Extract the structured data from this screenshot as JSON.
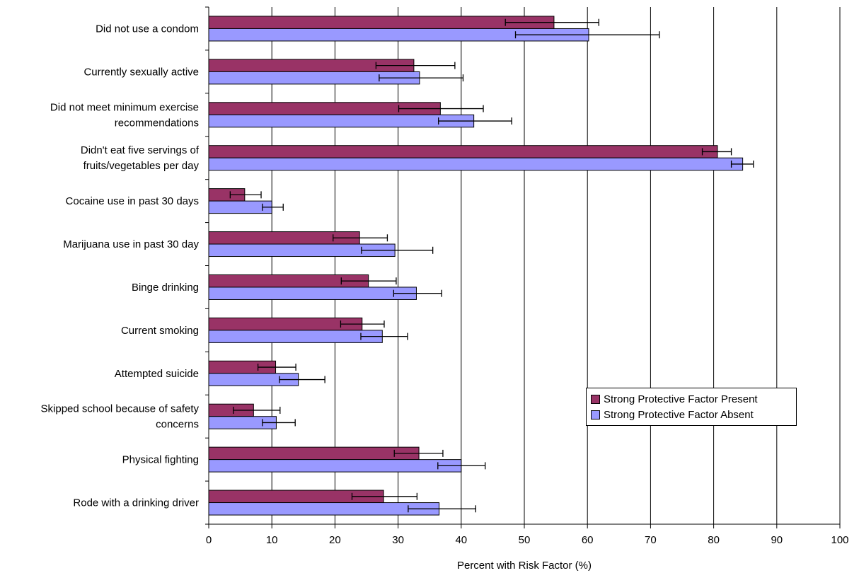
{
  "chart_data": {
    "type": "bar",
    "orientation": "horizontal",
    "title": "",
    "xlabel": "Percent with Risk Factor (%)",
    "ylabel": "",
    "xlim": [
      0,
      100
    ],
    "xticks": [
      0,
      10,
      20,
      30,
      40,
      50,
      60,
      70,
      80,
      90,
      100
    ],
    "grid": "vertical gridlines",
    "legend_position": "lower-right",
    "categories": [
      [
        "Did not use a condom"
      ],
      [
        "Currently sexually active"
      ],
      [
        "Did not meet minimum exercise",
        "recommendations"
      ],
      [
        "Didn't eat five servings of",
        "fruits/vegetables per day"
      ],
      [
        "Cocaine use in past 30 days"
      ],
      [
        "Marijuana use in past 30 day"
      ],
      [
        "Binge drinking"
      ],
      [
        "Current smoking"
      ],
      [
        "Attempted suicide"
      ],
      [
        "Skipped school because of safety",
        "concerns"
      ],
      [
        "Physical fighting"
      ],
      [
        "Rode with a drinking driver"
      ]
    ],
    "series": [
      {
        "name": "Strong Protective Factor Present",
        "color": "#993366",
        "values": [
          54.7,
          32.5,
          36.7,
          80.6,
          5.7,
          23.9,
          25.3,
          24.3,
          10.6,
          7.1,
          33.3,
          27.7
        ],
        "error_low": [
          47.0,
          26.5,
          30.1,
          78.2,
          3.4,
          19.7,
          21.0,
          20.9,
          7.8,
          3.9,
          29.4,
          22.7
        ],
        "error_high": [
          61.8,
          39.0,
          43.5,
          82.8,
          8.3,
          28.3,
          29.7,
          27.8,
          13.8,
          11.3,
          37.1,
          33.0
        ]
      },
      {
        "name": "Strong Protective Factor Absent",
        "color": "#9999ff",
        "values": [
          60.2,
          33.4,
          42.0,
          84.6,
          10.0,
          29.5,
          32.9,
          27.5,
          14.2,
          10.7,
          40.0,
          36.5
        ],
        "error_low": [
          48.6,
          27.0,
          36.4,
          82.8,
          8.5,
          24.2,
          29.3,
          24.1,
          11.2,
          8.5,
          36.3,
          31.6
        ],
        "error_high": [
          71.4,
          40.3,
          48.0,
          86.3,
          11.8,
          35.5,
          36.9,
          31.5,
          18.4,
          13.7,
          43.8,
          42.3
        ]
      }
    ]
  }
}
